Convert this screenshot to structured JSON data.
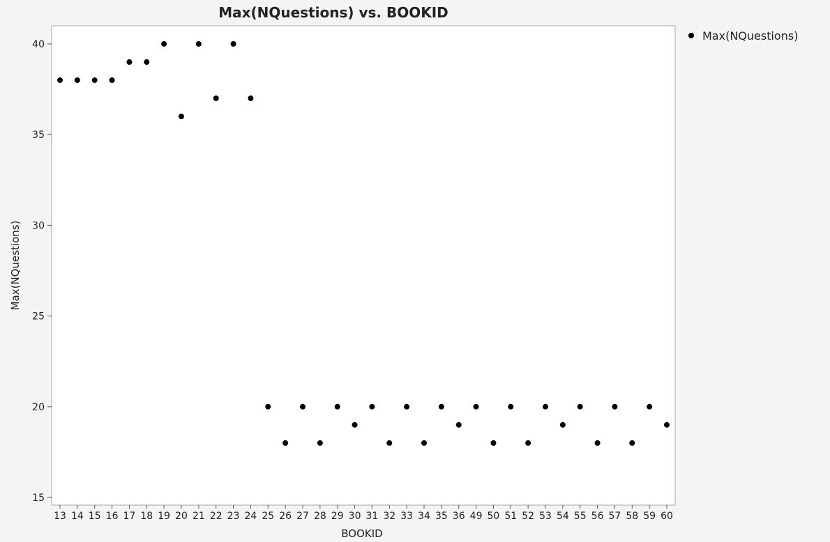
{
  "chart_data": {
    "type": "scatter",
    "title": "Max(NQuestions) vs. BOOKID",
    "xlabel": "BOOKID",
    "ylabel": "Max(NQuestions)",
    "categories": [
      "13",
      "14",
      "15",
      "16",
      "17",
      "18",
      "19",
      "20",
      "21",
      "22",
      "23",
      "24",
      "25",
      "26",
      "27",
      "28",
      "29",
      "30",
      "31",
      "32",
      "33",
      "34",
      "35",
      "36",
      "49",
      "50",
      "51",
      "52",
      "53",
      "54",
      "55",
      "56",
      "57",
      "58",
      "59",
      "60"
    ],
    "series": [
      {
        "name": "Max(NQuestions)",
        "values": [
          38,
          38,
          38,
          38,
          39,
          39,
          40,
          36,
          40,
          37,
          40,
          37,
          20,
          18,
          20,
          18,
          20,
          19,
          20,
          18,
          20,
          18,
          20,
          19,
          20,
          18,
          20,
          18,
          20,
          19,
          20,
          18,
          20,
          18,
          20,
          19
        ]
      }
    ],
    "ylim": [
      15,
      41
    ],
    "yticks": [
      15,
      20,
      25,
      30,
      35,
      40
    ],
    "grid": false,
    "legend_position": "top-right",
    "colors": {
      "marker": "#000000",
      "frame": "#a8a8a8",
      "plot_bg": "#ffffff",
      "page_bg": "#f4f4f4"
    }
  }
}
